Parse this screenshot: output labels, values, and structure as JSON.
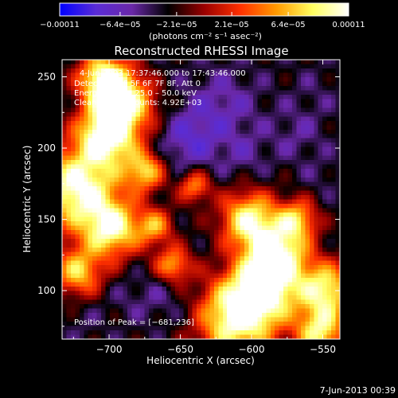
{
  "chart_data": {
    "type": "heatmap",
    "title": "Reconstructed RHESSI Image",
    "xlabel": "Heliocentric X (arcsec)",
    "ylabel": "Heliocentric Y (arcsec)",
    "xlim": [
      -733,
      -538
    ],
    "ylim": [
      66,
      262
    ],
    "xticks": [
      -700,
      -650,
      -600,
      -550
    ],
    "xtick_labels": [
      "−700",
      "−650",
      "−600",
      "−550"
    ],
    "yticks": [
      100,
      150,
      200,
      250
    ],
    "ytick_labels": [
      "100",
      "150",
      "200",
      "250"
    ],
    "colorbar": {
      "min": -0.00011,
      "max": 0.00011,
      "ticks": [
        -0.00011,
        -6.4e-05,
        -2.1e-05,
        2.1e-05,
        6.4e-05,
        0.00011
      ],
      "tick_labels": [
        "−0.00011",
        "−6.4e−05",
        "−2.1e−05",
        "2.1e−05",
        "6.4e−05",
        "0.00011"
      ],
      "unit_label": "(photons cm⁻² s⁻¹ asec⁻²)",
      "colors": [
        "#0000ff",
        "#5a2cd6",
        "#6a28a8",
        "#000000",
        "#9a0000",
        "#ff3000",
        "#ff9a00",
        "#ffff60",
        "#ffffff"
      ]
    },
    "annotations": {
      "time": "4‑Jun‑2003 17:37:46.000 to 17:43:46.000",
      "detectors": "Detectors: 3F 5F 6F 7F 8F, Att 0",
      "energy": "Energy Range: 25.0 – 50.0 keV",
      "clean": "Clean     Total counts: 4.92E+03",
      "peak": "Position of Peak = [−681,236]"
    },
    "peak": [
      -681,
      236
    ],
    "footer_date": "7‑Jun‑2013 00:39",
    "blobs": [
      {
        "x": -722,
        "y": 172,
        "v": 0.00011,
        "s": 20
      },
      {
        "x": -702,
        "y": 208,
        "v": 0.0001,
        "s": 14
      },
      {
        "x": -690,
        "y": 232,
        "v": 0.0001,
        "s": 16
      },
      {
        "x": -705,
        "y": 250,
        "v": 8e-05,
        "s": 12
      },
      {
        "x": -675,
        "y": 184,
        "v": 7e-05,
        "s": 10
      },
      {
        "x": -698,
        "y": 143,
        "v": 9e-05,
        "s": 14
      },
      {
        "x": -722,
        "y": 113,
        "v": 7e-05,
        "s": 12
      },
      {
        "x": -655,
        "y": 118,
        "v": 6e-05,
        "s": 9
      },
      {
        "x": -668,
        "y": 145,
        "v": 5e-05,
        "s": 9
      },
      {
        "x": -612,
        "y": 80,
        "v": 0.0001,
        "s": 20
      },
      {
        "x": -592,
        "y": 100,
        "v": 9e-05,
        "s": 16
      },
      {
        "x": -582,
        "y": 125,
        "v": 0.0001,
        "s": 15
      },
      {
        "x": -602,
        "y": 150,
        "v": 9e-05,
        "s": 14
      },
      {
        "x": -548,
        "y": 100,
        "v": 9e-05,
        "s": 14
      },
      {
        "x": -552,
        "y": 70,
        "v": 8e-05,
        "s": 12
      },
      {
        "x": -568,
        "y": 150,
        "v": 6e-05,
        "s": 10
      },
      {
        "x": -640,
        "y": 173,
        "v": 5e-05,
        "s": 8
      },
      {
        "x": -620,
        "y": 230,
        "v": -6e-05,
        "s": 18
      },
      {
        "x": -645,
        "y": 205,
        "v": -7e-05,
        "s": 16
      },
      {
        "x": -605,
        "y": 195,
        "v": -5e-05,
        "s": 12
      },
      {
        "x": -568,
        "y": 210,
        "v": -5e-05,
        "s": 14
      },
      {
        "x": -555,
        "y": 240,
        "v": -4e-05,
        "s": 12
      },
      {
        "x": -662,
        "y": 95,
        "v": -5e-05,
        "s": 14
      },
      {
        "x": -640,
        "y": 80,
        "v": -4e-05,
        "s": 10
      },
      {
        "x": -688,
        "y": 95,
        "v": -4e-05,
        "s": 10
      },
      {
        "x": -718,
        "y": 80,
        "v": -4e-05,
        "s": 10
      },
      {
        "x": -550,
        "y": 180,
        "v": -4e-05,
        "s": 10
      },
      {
        "x": -665,
        "y": 248,
        "v": -4e-05,
        "s": 10
      },
      {
        "x": -583,
        "y": 175,
        "v": -3e-05,
        "s": 9
      },
      {
        "x": -625,
        "y": 125,
        "v": -3e-05,
        "s": 9
      }
    ]
  }
}
